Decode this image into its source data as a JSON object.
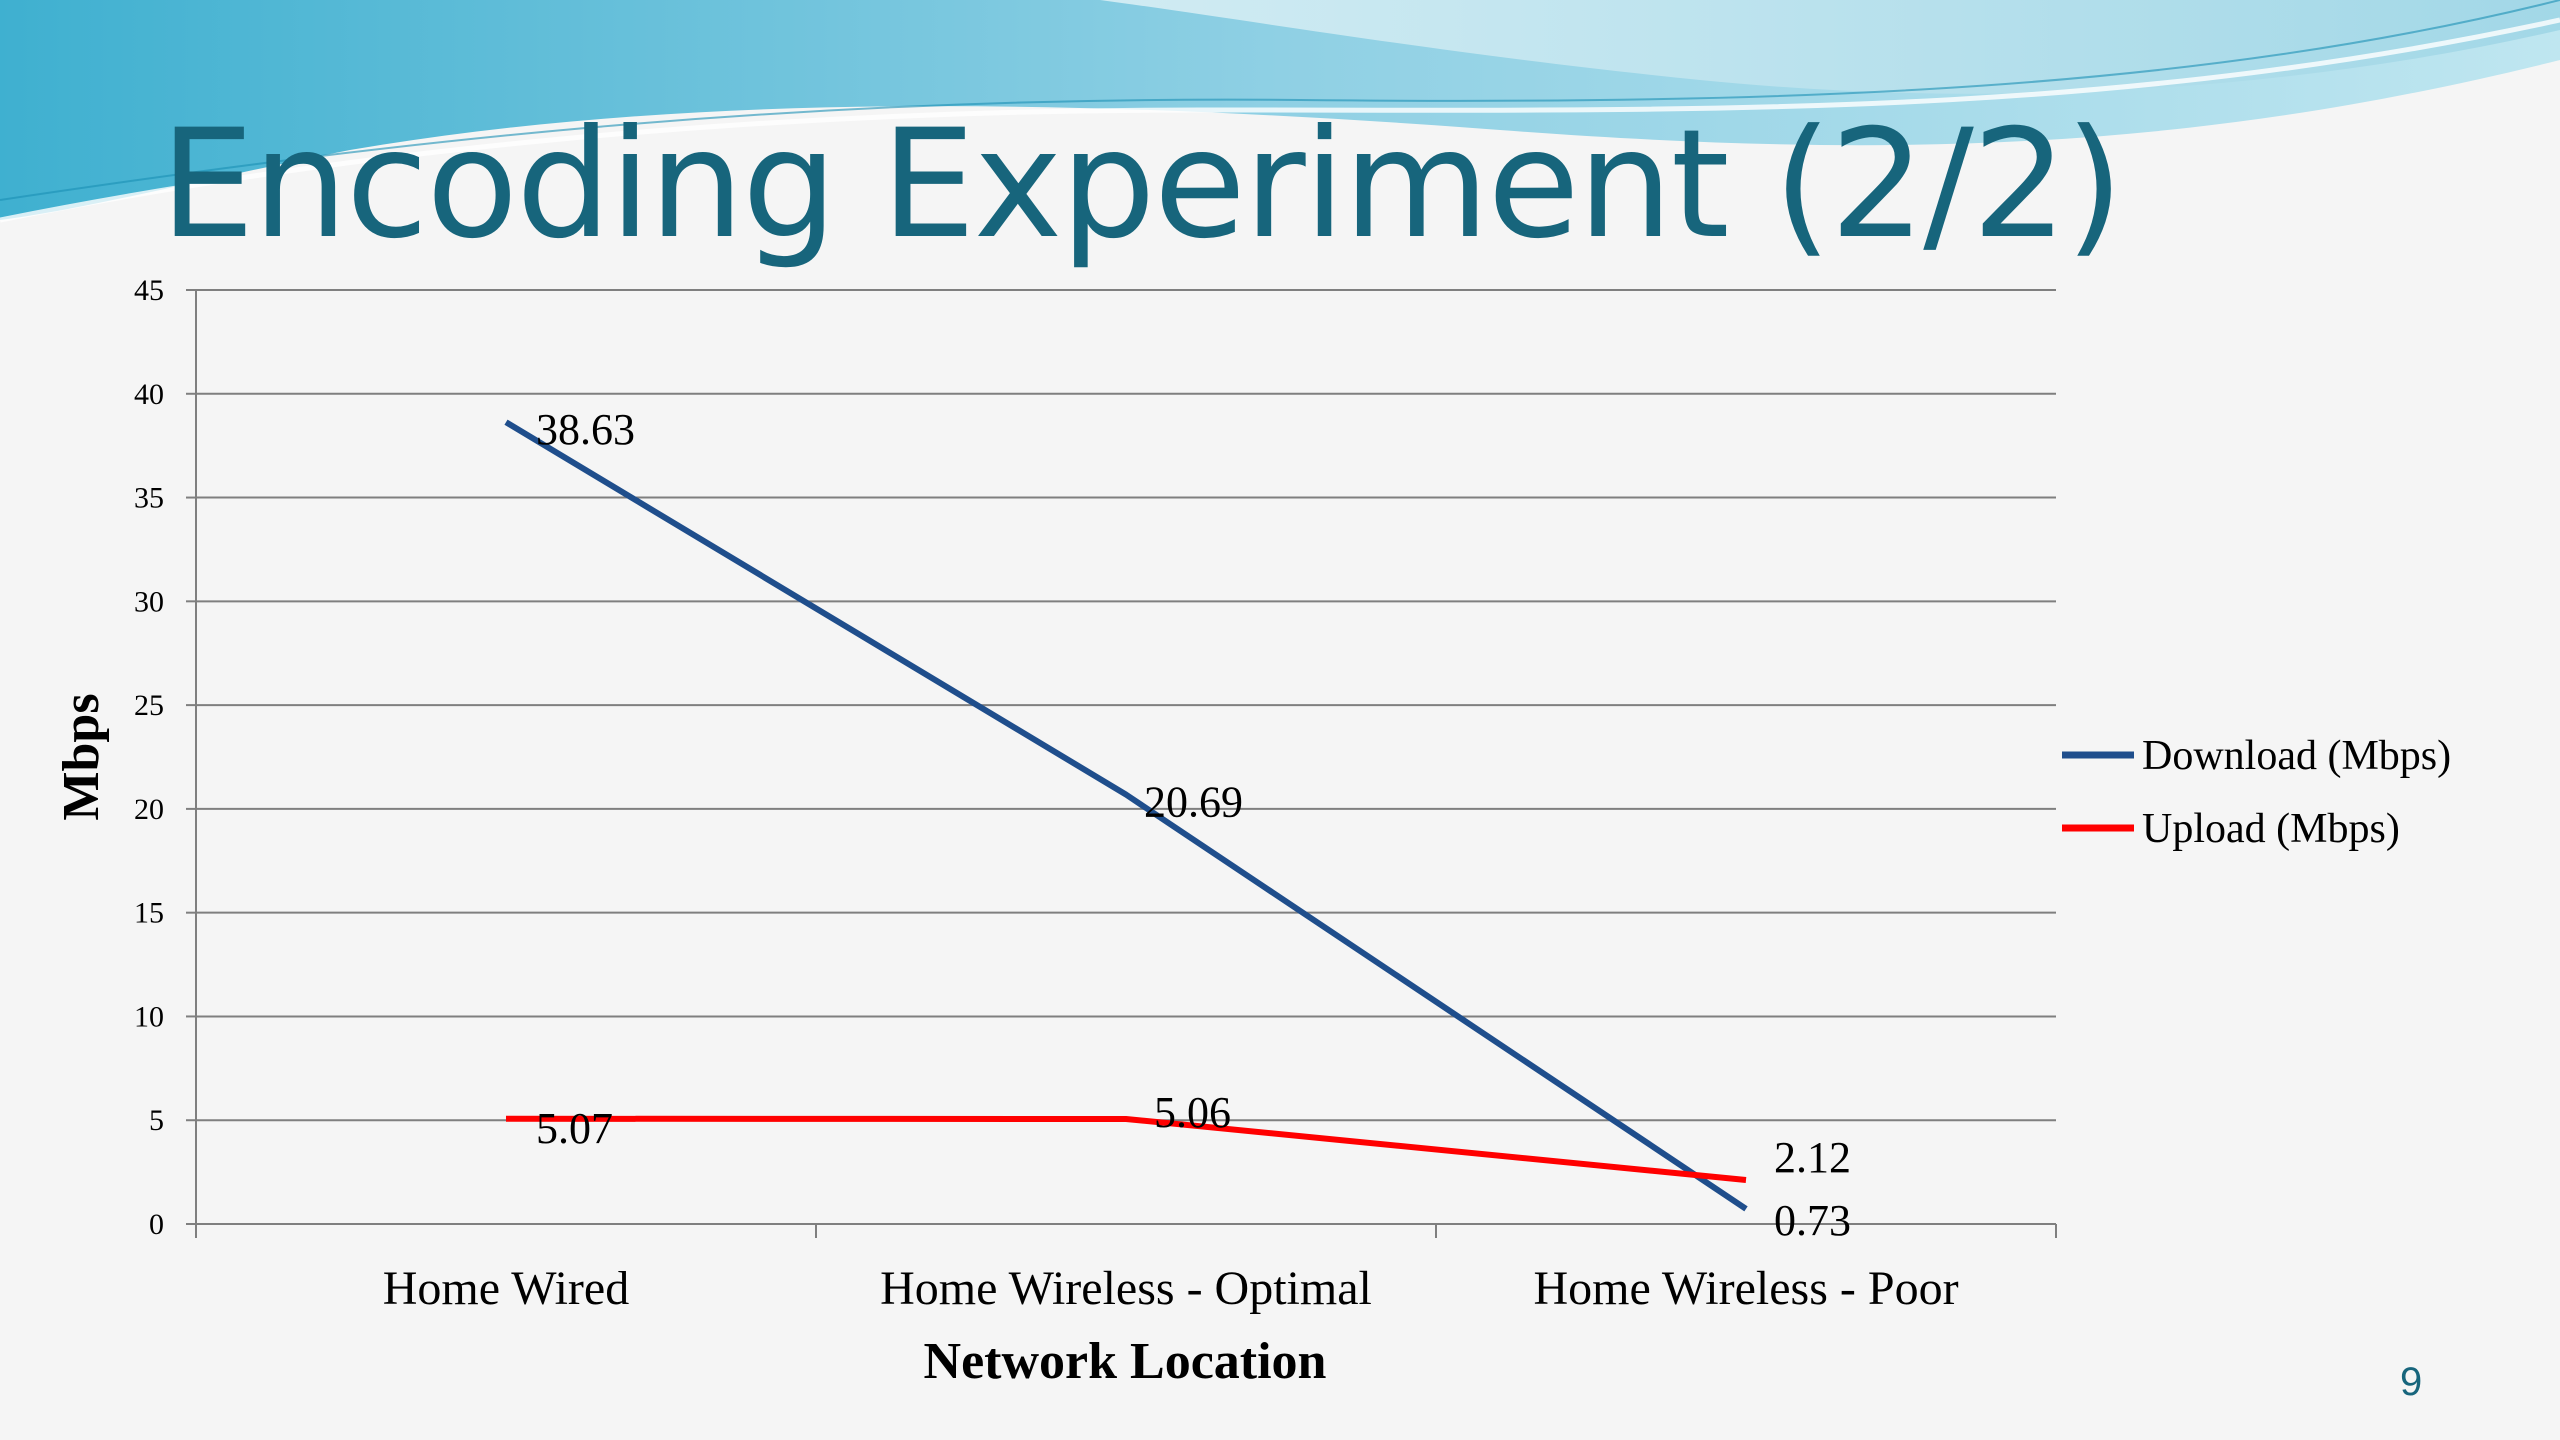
{
  "slide": {
    "title": "Encoding Experiment (2/2)",
    "page_number": "9"
  },
  "colors": {
    "title": "#17657c",
    "wave_light": "#a9dcea",
    "wave_mid": "#6cc0da",
    "download_series": "#1f4e8c",
    "upload_series": "#ff0000",
    "gridline": "#7f7f7f"
  },
  "chart_data": {
    "type": "line",
    "title": "",
    "xlabel": "Network Location",
    "ylabel": "Mbps",
    "categories": [
      "Home Wired",
      "Home Wireless - Optimal",
      "Home Wireless - Poor"
    ],
    "ylim": [
      0,
      45
    ],
    "yticks": [
      0,
      5,
      10,
      15,
      20,
      25,
      30,
      35,
      40,
      45
    ],
    "ytick_labels": [
      "0",
      "5",
      "10",
      "15",
      "20",
      "25",
      "30",
      "35",
      "40",
      "45"
    ],
    "grid": true,
    "legend_position": "right",
    "series": [
      {
        "name": "Download (Mbps)",
        "values": [
          38.63,
          20.69,
          0.73
        ],
        "labels": [
          "38.63",
          "20.69",
          "0.73"
        ],
        "color": "#1f4e8c"
      },
      {
        "name": "Upload (Mbps)",
        "values": [
          5.07,
          5.06,
          2.12
        ],
        "labels": [
          "5.07",
          "5.06",
          "2.12"
        ],
        "color": "#ff0000"
      }
    ]
  }
}
